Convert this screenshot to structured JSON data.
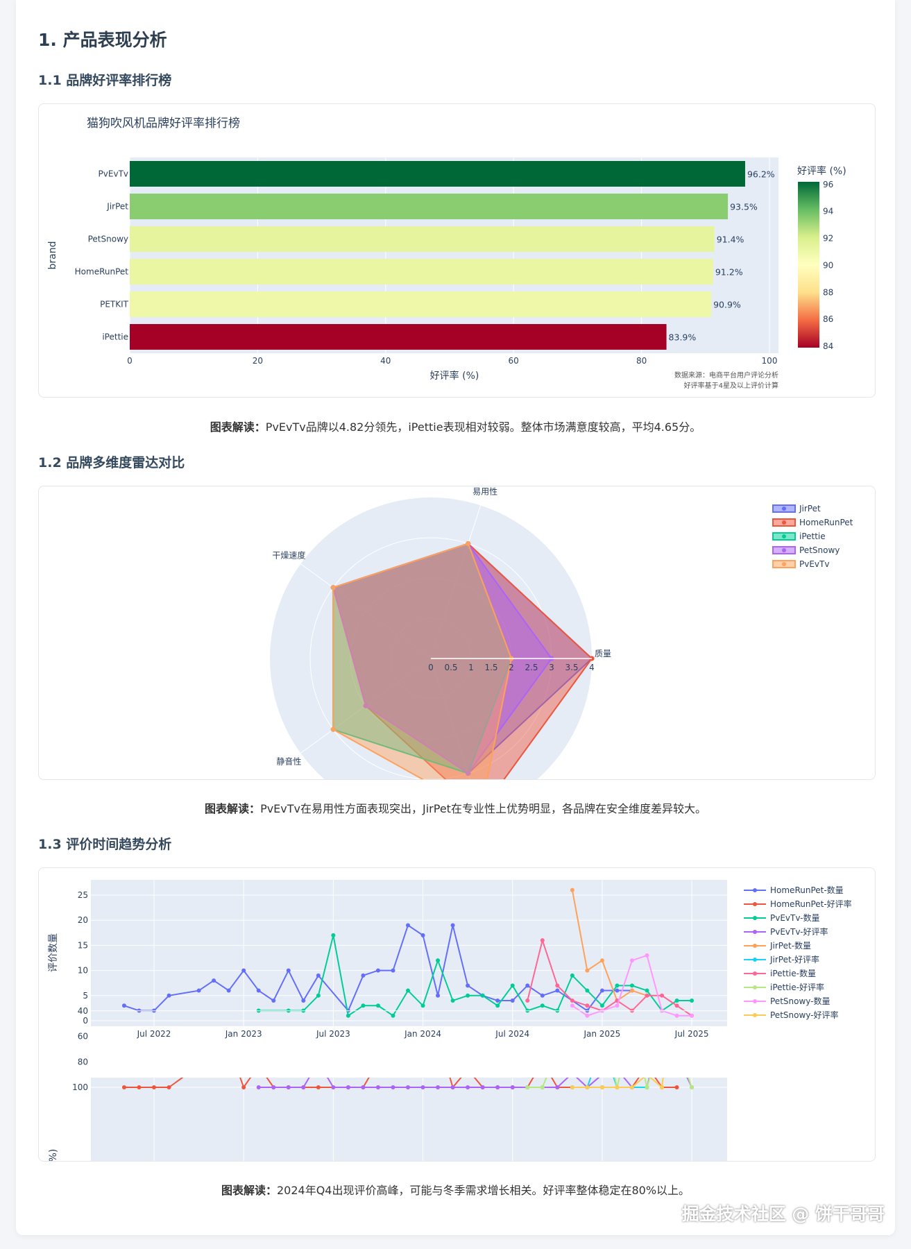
{
  "section": {
    "title": "1. 产品表现分析"
  },
  "sub1": {
    "title": "1.1 品牌好评率排行榜",
    "caption_label": "图表解读：",
    "caption": "PvEvTv品牌以4.82分领先，iPettie表现相对较弱。整体市场满意度较高，平均4.65分。"
  },
  "sub2": {
    "title": "1.2 品牌多维度雷达对比",
    "caption_label": "图表解读：",
    "caption": "PvEvTv在易用性方面表现突出，JirPet在专业性上优势明显，各品牌在安全维度差异较大。"
  },
  "sub3": {
    "title": "1.3 评价时间趋势分析",
    "caption_label": "图表解读：",
    "caption": "2024年Q4出现评价高峰，可能与冬季需求增长相关。好评率整体稳定在80%以上。"
  },
  "watermark": "掘金技术社区 @ 饼干哥哥",
  "chart_data": [
    {
      "type": "bar",
      "orientation": "horizontal",
      "title": "猫狗吹风机品牌好评率排行榜",
      "xlabel": "好评率 (%)",
      "ylabel": "brand",
      "categories": [
        "PvEvTv",
        "JirPet",
        "PetSnowy",
        "HomeRunPet",
        "PETKIT",
        "iPettie"
      ],
      "values": [
        96.2,
        93.5,
        91.4,
        91.2,
        90.9,
        83.9
      ],
      "data_labels": [
        "96.2%",
        "93.5%",
        "91.4%",
        "91.2%",
        "90.9%",
        "83.9%"
      ],
      "xlim": [
        0,
        100
      ],
      "xticks": [
        0,
        20,
        40,
        60,
        80,
        100
      ],
      "colorbar": {
        "title": "好评率 (%)",
        "ticks": [
          96,
          94,
          92,
          90,
          88,
          86,
          84
        ],
        "range": [
          83.9,
          96.2
        ],
        "colorscale": [
          "#a50026",
          "#f46d43",
          "#fee08b",
          "#ffffbf",
          "#d9ef8b",
          "#66bd63",
          "#006837"
        ]
      },
      "annotation": [
        "数据来源：电商平台用户评论分析",
        "好评率基于4星及以上评价计算"
      ]
    },
    {
      "type": "radar",
      "axes": [
        "质量",
        "易用性",
        "干燥速度",
        "静音性",
        ""
      ],
      "radial_range": [
        0,
        4
      ],
      "radial_ticks": [
        "0",
        "0.5",
        "1",
        "1.5",
        "2",
        "2.5",
        "3",
        "3.5",
        "4"
      ],
      "series": [
        {
          "name": "JirPet",
          "color": "#636efa",
          "values": [
            4,
            3,
            3,
            2,
            3
          ]
        },
        {
          "name": "HomeRunPet",
          "color": "#EF553B",
          "values": [
            4,
            3,
            3,
            2,
            4
          ]
        },
        {
          "name": "iPettie",
          "color": "#00cc96",
          "values": [
            2,
            3,
            3,
            3,
            3
          ]
        },
        {
          "name": "PetSnowy",
          "color": "#ab63fa",
          "values": [
            3,
            3,
            3,
            2,
            3
          ]
        },
        {
          "name": "PvEvTv",
          "color": "#FFA15A",
          "values": [
            2,
            3,
            3,
            3,
            4
          ]
        }
      ]
    },
    {
      "type": "line",
      "ylabel": "评价数量",
      "ylim": [
        0,
        27
      ],
      "yticks": [
        0,
        5,
        10,
        15,
        20,
        25
      ],
      "xticks": [
        "Jul 2022",
        "Jan 2023",
        "Jul 2023",
        "Jan 2024",
        "Jul 2024",
        "Jan 2025",
        "Jul 2025"
      ],
      "series": [
        {
          "name": "HomeRunPet-数量",
          "color": "#636efa",
          "points": [
            [
              "2022-05",
              3
            ],
            [
              "2022-06",
              2
            ],
            [
              "2022-07",
              2
            ],
            [
              "2022-08",
              5
            ],
            [
              "2022-10",
              6
            ],
            [
              "2022-11",
              8
            ],
            [
              "2022-12",
              6
            ],
            [
              "2023-01",
              10
            ],
            [
              "2023-02",
              6
            ],
            [
              "2023-03",
              4
            ],
            [
              "2023-04",
              10
            ],
            [
              "2023-05",
              4
            ],
            [
              "2023-06",
              9
            ],
            [
              "2023-08",
              2
            ],
            [
              "2023-09",
              9
            ],
            [
              "2023-10",
              10
            ],
            [
              "2023-11",
              10
            ],
            [
              "2023-12",
              19
            ],
            [
              "2024-01",
              17
            ],
            [
              "2024-02",
              5
            ],
            [
              "2024-03",
              19
            ],
            [
              "2024-04",
              7
            ],
            [
              "2024-05",
              5
            ],
            [
              "2024-06",
              4
            ],
            [
              "2024-07",
              4
            ],
            [
              "2024-08",
              7
            ],
            [
              "2024-09",
              5
            ],
            [
              "2024-10",
              6
            ],
            [
              "2024-12",
              2
            ],
            [
              "2025-01",
              6
            ],
            [
              "2025-02",
              6
            ],
            [
              "2025-03",
              6
            ]
          ]
        },
        {
          "name": "PvEvTv-数量",
          "color": "#00cc96",
          "points": [
            [
              "2023-02",
              2
            ],
            [
              "2023-04",
              2
            ],
            [
              "2023-05",
              2
            ],
            [
              "2023-06",
              5
            ],
            [
              "2023-07",
              17
            ],
            [
              "2023-08",
              1
            ],
            [
              "2023-09",
              3
            ],
            [
              "2023-10",
              3
            ],
            [
              "2023-11",
              1
            ],
            [
              "2023-12",
              6
            ],
            [
              "2024-01",
              3
            ],
            [
              "2024-02",
              12
            ],
            [
              "2024-03",
              4
            ],
            [
              "2024-04",
              5
            ],
            [
              "2024-05",
              5
            ],
            [
              "2024-06",
              3
            ],
            [
              "2024-07",
              7
            ],
            [
              "2024-08",
              2
            ],
            [
              "2024-09",
              3
            ],
            [
              "2024-10",
              2
            ],
            [
              "2024-11",
              9
            ],
            [
              "2024-12",
              6
            ],
            [
              "2025-01",
              3
            ],
            [
              "2025-02",
              7
            ],
            [
              "2025-03",
              7
            ],
            [
              "2025-04",
              6
            ],
            [
              "2025-05",
              2
            ],
            [
              "2025-06",
              4
            ],
            [
              "2025-07",
              4
            ]
          ]
        },
        {
          "name": "JirPet-数量",
          "color": "#FFA15A",
          "points": [
            [
              "2024-11",
              26
            ],
            [
              "2024-12",
              10
            ],
            [
              "2025-01",
              12
            ],
            [
              "2025-02",
              4
            ],
            [
              "2025-03",
              6
            ],
            [
              "2025-04",
              5
            ]
          ]
        },
        {
          "name": "iPettie-数量",
          "color": "#FF6692",
          "points": [
            [
              "2024-08",
              4
            ],
            [
              "2024-09",
              16
            ],
            [
              "2024-10",
              7
            ],
            [
              "2024-11",
              4
            ],
            [
              "2024-12",
              3
            ],
            [
              "2025-01",
              2
            ],
            [
              "2025-02",
              4
            ],
            [
              "2025-03",
              2
            ],
            [
              "2025-04",
              5
            ],
            [
              "2025-05",
              5
            ],
            [
              "2025-06",
              3
            ],
            [
              "2025-07",
              1
            ]
          ]
        },
        {
          "name": "PetSnowy-数量",
          "color": "#FF97FF",
          "points": [
            [
              "2024-11",
              3
            ],
            [
              "2024-12",
              1
            ],
            [
              "2025-01",
              2
            ],
            [
              "2025-02",
              3
            ],
            [
              "2025-03",
              12
            ],
            [
              "2025-04",
              13
            ],
            [
              "2025-05",
              2
            ],
            [
              "2025-06",
              1
            ],
            [
              "2025-07",
              1
            ]
          ]
        }
      ]
    },
    {
      "type": "line",
      "ylabel": "好评率 (%)",
      "ylim": [
        40,
        105
      ],
      "yticks": [
        40,
        60,
        80,
        100
      ],
      "series": [
        {
          "name": "HomeRunPet-好评率",
          "color": "#EF553B",
          "points": [
            [
              "2022-05",
              100
            ],
            [
              "2022-06",
              100
            ],
            [
              "2022-07",
              100
            ],
            [
              "2022-08",
              100
            ],
            [
              "2022-10",
              83
            ],
            [
              "2022-11",
              75
            ],
            [
              "2022-12",
              67
            ],
            [
              "2023-01",
              100
            ],
            [
              "2023-02",
              83
            ],
            [
              "2023-03",
              100
            ],
            [
              "2023-04",
              100
            ],
            [
              "2023-05",
              100
            ],
            [
              "2023-06",
              100
            ],
            [
              "2023-08",
              100
            ],
            [
              "2023-09",
              100
            ],
            [
              "2023-10",
              80
            ],
            [
              "2023-11",
              80
            ],
            [
              "2023-12",
              84
            ],
            [
              "2024-01",
              82
            ],
            [
              "2024-02",
              60
            ],
            [
              "2024-03",
              100
            ],
            [
              "2024-04",
              86
            ],
            [
              "2024-05",
              100
            ],
            [
              "2024-06",
              100
            ],
            [
              "2024-07",
              100
            ],
            [
              "2024-08",
              100
            ],
            [
              "2024-09",
              80
            ],
            [
              "2024-10",
              100
            ],
            [
              "2024-12",
              100
            ],
            [
              "2025-01",
              100
            ],
            [
              "2025-02",
              100
            ],
            [
              "2025-03",
              100
            ],
            [
              "2025-04",
              83
            ],
            [
              "2025-05",
              100
            ],
            [
              "2025-06",
              100
            ]
          ]
        },
        {
          "name": "PvEvTv-好评率",
          "color": "#ab63fa",
          "points": [
            [
              "2023-02",
              100
            ],
            [
              "2023-03",
              100
            ],
            [
              "2023-04",
              100
            ],
            [
              "2023-05",
              100
            ],
            [
              "2023-06",
              80
            ],
            [
              "2023-07",
              100
            ],
            [
              "2023-08",
              100
            ],
            [
              "2023-09",
              100
            ],
            [
              "2023-10",
              100
            ],
            [
              "2023-11",
              100
            ],
            [
              "2023-12",
              100
            ],
            [
              "2024-01",
              100
            ],
            [
              "2024-02",
              100
            ],
            [
              "2024-03",
              100
            ],
            [
              "2024-04",
              100
            ],
            [
              "2024-05",
              100
            ],
            [
              "2024-06",
              100
            ],
            [
              "2024-07",
              100
            ],
            [
              "2024-08",
              100
            ],
            [
              "2024-09",
              100
            ],
            [
              "2024-10",
              100
            ],
            [
              "2024-11",
              89
            ],
            [
              "2024-12",
              100
            ],
            [
              "2025-01",
              90
            ],
            [
              "2025-02",
              86
            ],
            [
              "2025-03",
              100
            ],
            [
              "2025-04",
              100
            ],
            [
              "2025-05",
              50
            ],
            [
              "2025-06",
              75
            ],
            [
              "2025-07",
              100
            ]
          ]
        },
        {
          "name": "JirPet-好评率",
          "color": "#19d3f3",
          "points": [
            [
              "2024-11",
              100
            ],
            [
              "2024-12",
              100
            ],
            [
              "2025-01",
              67
            ],
            [
              "2025-02",
              100
            ],
            [
              "2025-03",
              100
            ],
            [
              "2025-04",
              100
            ]
          ]
        },
        {
          "name": "iPettie-好评率",
          "color": "#B6E880",
          "points": [
            [
              "2024-08",
              100
            ],
            [
              "2024-09",
              100
            ],
            [
              "2024-10",
              71
            ],
            [
              "2024-11",
              75
            ],
            [
              "2024-12",
              67
            ],
            [
              "2025-01",
              50
            ],
            [
              "2025-02",
              100
            ],
            [
              "2025-03",
              50
            ],
            [
              "2025-04",
              100
            ],
            [
              "2025-05",
              60
            ],
            [
              "2025-06",
              67
            ],
            [
              "2025-07",
              100
            ]
          ]
        },
        {
          "name": "PetSnowy-好评率",
          "color": "#FECB52",
          "points": [
            [
              "2024-11",
              100
            ],
            [
              "2024-12",
              100
            ],
            [
              "2025-01",
              100
            ],
            [
              "2025-02",
              100
            ],
            [
              "2025-03",
              100
            ],
            [
              "2025-04",
              90
            ],
            [
              "2025-05",
              100
            ],
            [
              "2025-06",
              0
            ]
          ]
        }
      ]
    }
  ]
}
